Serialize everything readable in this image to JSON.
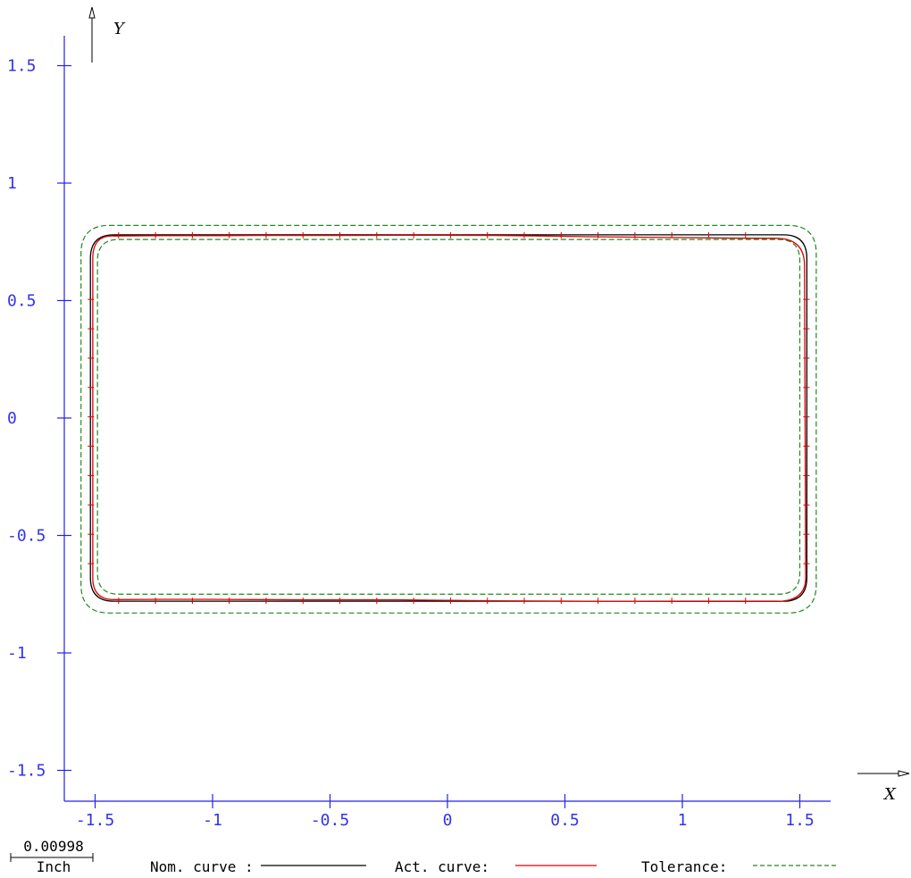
{
  "chart_data": {
    "type": "line",
    "xlabel": "X",
    "ylabel": "Y",
    "xlim": [
      -1.62,
      1.64
    ],
    "ylim": [
      -1.53,
      1.63
    ],
    "x_ticks": [
      -1.5,
      -1,
      -0.5,
      0,
      0.5,
      1,
      1.5
    ],
    "x_tick_labels": [
      "-1.5",
      "-1",
      "-0.5",
      "0",
      "0.5",
      "1",
      "1.5"
    ],
    "y_ticks": [
      1.5,
      1,
      0.5,
      0,
      -0.5,
      -1,
      -1.5
    ],
    "y_tick_labels": [
      "1.5",
      "1",
      "0.5",
      "0",
      "-0.5",
      "-1",
      "-1.5"
    ],
    "grid": false,
    "legend_position": "bottom",
    "scale_bar": {
      "value": "0.00998",
      "unit": "Inch"
    },
    "legend": [
      {
        "label": "Nom. curve :",
        "color": "#000000",
        "style": "solid"
      },
      {
        "label": "Act. curve:",
        "color": "#dd0000",
        "style": "solid"
      },
      {
        "label": "Tolerance:",
        "color": "#228822",
        "style": "dashed"
      }
    ],
    "shape": {
      "description_free": true,
      "nominal": {
        "xmin": -1.52,
        "xmax": 1.53,
        "ymin": -0.78,
        "ymax": 0.78,
        "corner_radius": 0.1
      },
      "tolerance_outer": {
        "xmin": -1.56,
        "xmax": 1.57,
        "ymin": -0.83,
        "ymax": 0.82,
        "corner_radius": 0.12
      },
      "tolerance_inner": {
        "xmin": -1.49,
        "xmax": 1.5,
        "ymin": -0.75,
        "ymax": 0.76,
        "corner_radius": 0.09
      },
      "actual_top_y": [
        0.775,
        0.776,
        0.776,
        0.777,
        0.777,
        0.777,
        0.778,
        0.778,
        0.777,
        0.775,
        0.772,
        0.77,
        0.768,
        0.766,
        0.765
      ],
      "actual_bottom_y": [
        -0.773,
        -0.772,
        -0.772,
        -0.773,
        -0.774,
        -0.774,
        -0.774,
        -0.776,
        -0.778,
        -0.779,
        -0.78,
        -0.78,
        -0.781,
        -0.781,
        -0.781
      ]
    }
  },
  "colors": {
    "axis": "#2222ee",
    "nominal": "#000000",
    "actual": "#dd0000",
    "tolerance": "#228822"
  }
}
